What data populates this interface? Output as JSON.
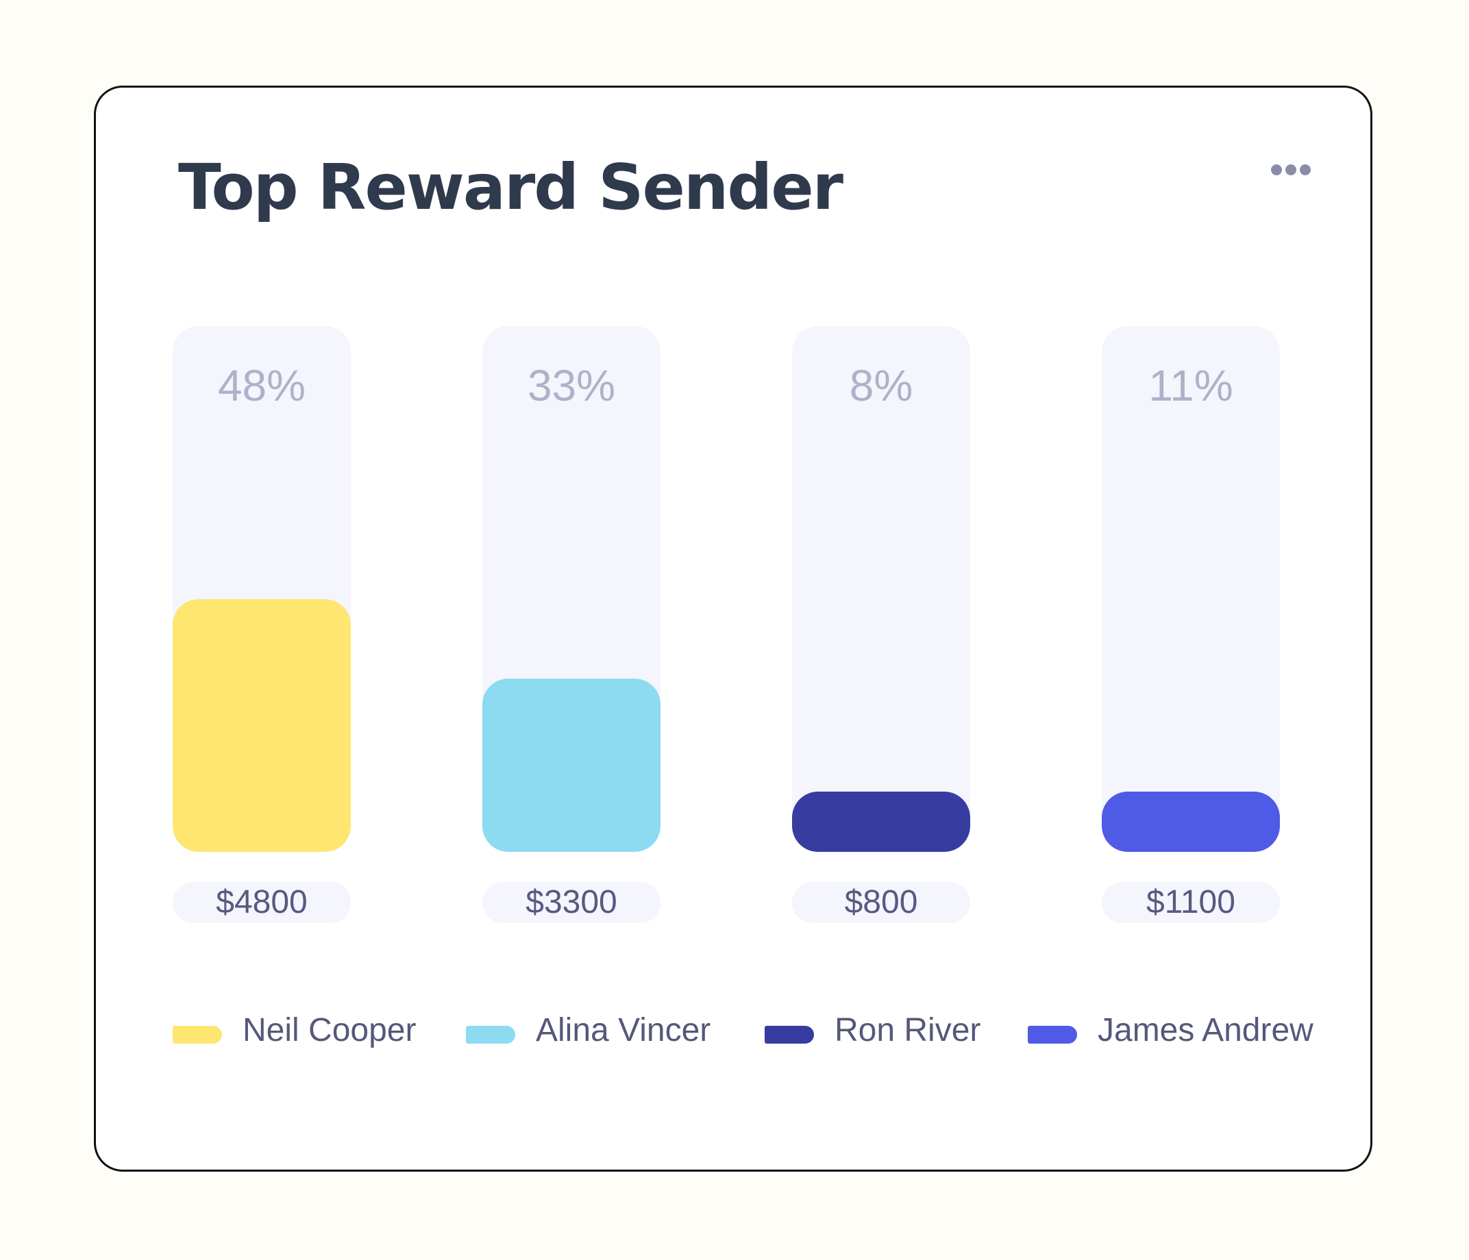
{
  "title": "Top Reward Sender",
  "menu_icon": "more-horizontal-icon",
  "colors": {
    "track": "#f4f5fd",
    "percent_text": "#b0b1c8",
    "amount_text": "#575a7f",
    "title_text": "#2f3a4d"
  },
  "chart_data": {
    "type": "bar",
    "title": "Top Reward Sender",
    "categories": [
      "Neil Cooper",
      "Alina Vincer",
      "Ron River",
      "James Andrew"
    ],
    "values": [
      4800,
      3300,
      800,
      1100
    ],
    "percent_values": [
      48,
      33,
      8,
      11
    ],
    "percent_labels": [
      "48%",
      "33%",
      "8%",
      "11%"
    ],
    "value_labels": [
      "$4800",
      "$3300",
      "$800",
      "$1100"
    ],
    "colors": [
      "#fee671",
      "#8cdbf1",
      "#363ca0",
      "#4f5ae7"
    ],
    "ylim": [
      0,
      100
    ],
    "grid": false,
    "legend": "bottom"
  }
}
